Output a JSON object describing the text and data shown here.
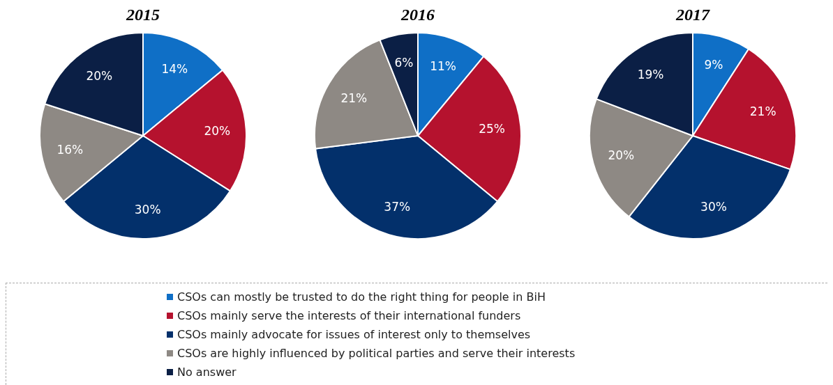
{
  "chart_data": [
    {
      "type": "pie",
      "title": "2015",
      "categories": [
        "CSOs can mostly be trusted to do the right thing for people in BiH",
        "CSOs mainly serve the interests of their international funders",
        "CSOs mainly advocate for issues of interest only to themselves",
        "CSOs are highly influenced by political parties and serve their interests",
        "No answer"
      ],
      "values": [
        14,
        20,
        30,
        16,
        20
      ],
      "value_labels": [
        "14%",
        "20%",
        "30%",
        "16%",
        "20%"
      ],
      "colors": [
        "#0f6fc6",
        "#b5122e",
        "#03306b",
        "#8e8984",
        "#0b1f45"
      ],
      "legend": "bottom"
    },
    {
      "type": "pie",
      "title": "2016",
      "categories": [
        null,
        null,
        null,
        null,
        null
      ],
      "values": [
        11,
        25,
        37,
        21,
        6
      ],
      "value_labels": [
        "11%",
        "25%",
        "37%",
        "21%",
        "6%"
      ],
      "colors": [
        "#0f6fc6",
        "#b5122e",
        "#03306b",
        "#8e8984",
        "#0b1f45"
      ]
    },
    {
      "type": "pie",
      "title": "2017",
      "categories": [
        null,
        null,
        null,
        null,
        null
      ],
      "values": [
        9,
        21,
        30,
        20,
        19
      ],
      "value_labels": [
        "9%",
        "21%",
        "30%",
        "20%",
        "19%"
      ],
      "colors": [
        "#0f6fc6",
        "#b5122e",
        "#03306b",
        "#8e8984",
        "#0b1f45"
      ]
    }
  ]
}
